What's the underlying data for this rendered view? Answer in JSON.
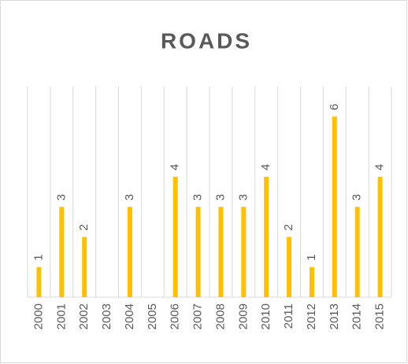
{
  "chart_data": {
    "type": "bar",
    "title": "ROADS",
    "categories": [
      "2000",
      "2001",
      "2002",
      "2003",
      "2004",
      "2005",
      "2006",
      "2007",
      "2008",
      "2009",
      "2010",
      "2011",
      "2012",
      "2013",
      "2014",
      "2015"
    ],
    "values": [
      1,
      3,
      2,
      null,
      3,
      null,
      4,
      3,
      3,
      3,
      4,
      2,
      1,
      6,
      3,
      4
    ],
    "color": "#ffc000",
    "ylim": [
      0,
      7
    ],
    "grid": true
  }
}
